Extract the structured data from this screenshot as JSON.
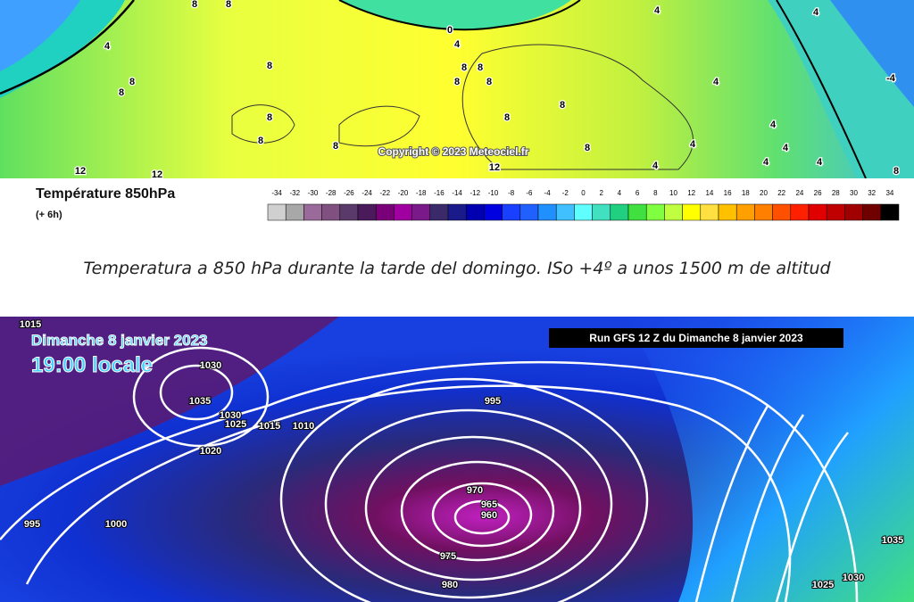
{
  "top_map": {
    "title": "Température 850hPa",
    "subtitle": "(+ 6h)",
    "copyright": "Copyright © 2023 Meteociel.fr",
    "contour_labels": [
      "8",
      "8",
      "0",
      "4",
      "4",
      "8",
      "8",
      "8",
      "8",
      "8",
      "8",
      "8",
      "4",
      "4",
      "-4",
      "8",
      "8",
      "8",
      "8",
      "8",
      "8",
      "4",
      "4",
      "4",
      "4",
      "4",
      "4",
      "8",
      "12",
      "12",
      "12",
      "4"
    ]
  },
  "legend": {
    "ticks": [
      -34,
      -32,
      -30,
      -28,
      -26,
      -24,
      -22,
      -20,
      -18,
      -16,
      -14,
      -12,
      -10,
      -8,
      -6,
      -4,
      -2,
      0,
      2,
      4,
      6,
      8,
      10,
      12,
      14,
      16,
      18,
      20,
      22,
      24,
      26,
      28,
      30,
      32,
      34
    ],
    "colors": [
      "#d0d0d0",
      "#a8a8a8",
      "#9a6a9a",
      "#805080",
      "#5a3a6a",
      "#4a1a5a",
      "#7a007a",
      "#a000a0",
      "#7a1a8a",
      "#3a2a6a",
      "#1a1a8a",
      "#0000b0",
      "#0000e0",
      "#1a40ff",
      "#2060ff",
      "#2090ff",
      "#40c0ff",
      "#60ffff",
      "#40e0c0",
      "#20d080",
      "#40e040",
      "#80ff40",
      "#c0ff40",
      "#ffff00",
      "#ffe040",
      "#ffc000",
      "#ffa000",
      "#ff8000",
      "#ff5000",
      "#ff2000",
      "#e00000",
      "#c00000",
      "#a00000",
      "#700000",
      "#000000"
    ]
  },
  "caption": "Temperatura a 850 hPa durante la tarde del domingo. ISo +4º a unos 1500 m de altitud",
  "bottom_map": {
    "date": "Dimanche 8 janvier 2023",
    "time": "19:00 locale",
    "run": "Run GFS 12 Z du Dimanche 8 janvier 2023",
    "isobar_labels": [
      "1015",
      "1030",
      "1035",
      "1030",
      "1025",
      "1015",
      "1010",
      "1020",
      "995",
      "970",
      "965",
      "960",
      "975",
      "980",
      "1000",
      "995",
      "1035",
      "1030",
      "1025"
    ]
  }
}
